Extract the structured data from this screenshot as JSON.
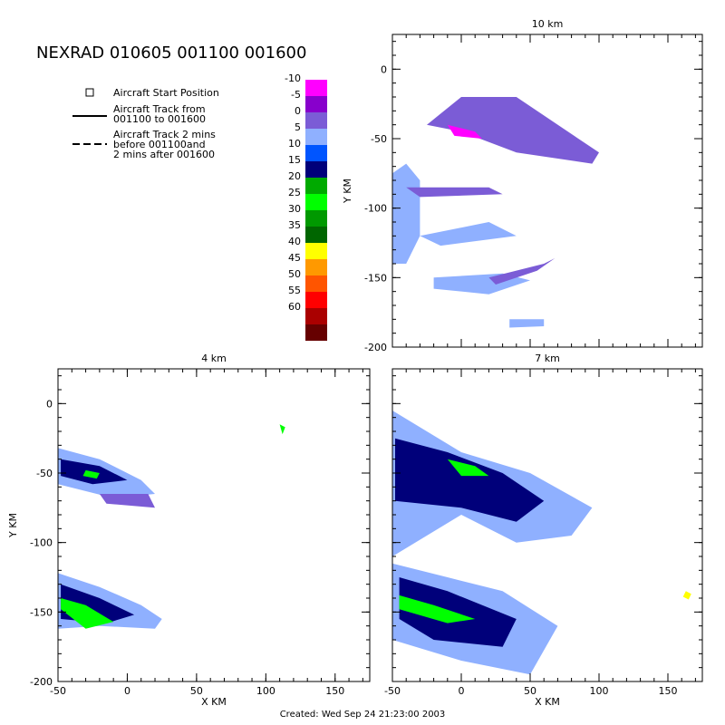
{
  "header": {
    "title": "NEXRAD 010605 001100 001600",
    "footer": "Created: Wed Sep 24 21:23:00 2003"
  },
  "legend": {
    "start_position": "Aircraft Start Position",
    "track_line1": "Aircraft Track from",
    "track_line2": "001100 to 001600",
    "dashed_line1": "Aircraft Track 2 mins",
    "dashed_line2": "before 001100and",
    "dashed_line3": "2 mins after 001600"
  },
  "colorbar": {
    "labels": [
      "-10",
      "-5",
      "0",
      "5",
      "10",
      "15",
      "20",
      "25",
      "30",
      "35",
      "40",
      "45",
      "50",
      "55",
      "60"
    ],
    "colors": [
      "#ff00ff",
      "#8800cc",
      "#7b5cd6",
      "#8fb0ff",
      "#0055ff",
      "#00007a",
      "#00aa00",
      "#00ff00",
      "#009900",
      "#006600",
      "#ffff00",
      "#ff9900",
      "#ff5500",
      "#ff0000",
      "#aa0000",
      "#660000"
    ]
  },
  "chart_data": [
    {
      "type": "heatmap",
      "title": "10 km",
      "xlabel": "",
      "ylabel": "Y KM",
      "xlim": [
        -50,
        175
      ],
      "ylim": [
        -200,
        25
      ],
      "yticks": [
        0,
        -50,
        -100,
        -150,
        -200
      ],
      "xticks": [],
      "regions": [
        {
          "label": "5",
          "color": "#8fb0ff",
          "points": [
            [
              -50,
              -75
            ],
            [
              -40,
              -68
            ],
            [
              -30,
              -80
            ],
            [
              -30,
              -120
            ],
            [
              -40,
              -140
            ],
            [
              -50,
              -140
            ]
          ]
        },
        {
          "label": "5",
          "color": "#8fb0ff",
          "points": [
            [
              -30,
              -120
            ],
            [
              20,
              -110
            ],
            [
              40,
              -120
            ],
            [
              -15,
              -127
            ]
          ]
        },
        {
          "label": "5",
          "color": "#8fb0ff",
          "points": [
            [
              -20,
              -150
            ],
            [
              30,
              -147
            ],
            [
              50,
              -152
            ],
            [
              20,
              -162
            ],
            [
              -20,
              -158
            ]
          ]
        },
        {
          "label": "5",
          "color": "#8fb0ff",
          "points": [
            [
              35,
              -180
            ],
            [
              60,
              -180
            ],
            [
              60,
              -185
            ],
            [
              35,
              -186
            ]
          ]
        },
        {
          "label": "0",
          "color": "#7b5cd6",
          "points": [
            [
              -25,
              -40
            ],
            [
              0,
              -20
            ],
            [
              40,
              -20
            ],
            [
              100,
              -60
            ],
            [
              95,
              -68
            ],
            [
              40,
              -60
            ],
            [
              0,
              -45
            ]
          ]
        },
        {
          "label": "0",
          "color": "#7b5cd6",
          "points": [
            [
              -40,
              -85
            ],
            [
              20,
              -85
            ],
            [
              30,
              -90
            ],
            [
              -30,
              -92
            ]
          ]
        },
        {
          "label": "0",
          "color": "#7b5cd6",
          "points": [
            [
              20,
              -150
            ],
            [
              60,
              -140
            ],
            [
              68,
              -136
            ],
            [
              55,
              -145
            ],
            [
              25,
              -155
            ]
          ]
        },
        {
          "label": "-10",
          "color": "#ff00ff",
          "points": [
            [
              -10,
              -40
            ],
            [
              10,
              -45
            ],
            [
              15,
              -50
            ],
            [
              -5,
              -48
            ]
          ]
        }
      ]
    },
    {
      "type": "heatmap",
      "title": "4 km",
      "xlabel": "X KM",
      "ylabel": "Y KM",
      "xlim": [
        -50,
        175
      ],
      "ylim": [
        -200,
        25
      ],
      "xticks": [
        -50,
        0,
        50,
        100,
        150
      ],
      "yticks": [
        0,
        -50,
        -100,
        -150,
        -200
      ],
      "regions": [
        {
          "label": "5",
          "color": "#8fb0ff",
          "points": [
            [
              -50,
              -32
            ],
            [
              -20,
              -40
            ],
            [
              10,
              -55
            ],
            [
              20,
              -65
            ],
            [
              -10,
              -68
            ],
            [
              -50,
              -58
            ]
          ]
        },
        {
          "label": "15",
          "color": "#00007a",
          "points": [
            [
              -48,
              -40
            ],
            [
              -20,
              -45
            ],
            [
              0,
              -55
            ],
            [
              -25,
              -58
            ],
            [
              -48,
              -52
            ]
          ]
        },
        {
          "label": "25",
          "color": "#00ff00",
          "points": [
            [
              -30,
              -48
            ],
            [
              -20,
              -50
            ],
            [
              -22,
              -54
            ],
            [
              -32,
              -52
            ]
          ]
        },
        {
          "label": "0",
          "color": "#7b5cd6",
          "points": [
            [
              -20,
              -65
            ],
            [
              15,
              -65
            ],
            [
              20,
              -75
            ],
            [
              -15,
              -72
            ]
          ]
        },
        {
          "label": "5",
          "color": "#8fb0ff",
          "points": [
            [
              -50,
              -122
            ],
            [
              -20,
              -132
            ],
            [
              10,
              -145
            ],
            [
              25,
              -155
            ],
            [
              20,
              -162
            ],
            [
              -20,
              -160
            ],
            [
              -50,
              -162
            ]
          ]
        },
        {
          "label": "15",
          "color": "#00007a",
          "points": [
            [
              -48,
              -130
            ],
            [
              -20,
              -140
            ],
            [
              5,
              -152
            ],
            [
              -15,
              -158
            ],
            [
              -48,
              -155
            ]
          ]
        },
        {
          "label": "25",
          "color": "#00ff00",
          "points": [
            [
              -48,
              -140
            ],
            [
              -30,
              -145
            ],
            [
              -10,
              -157
            ],
            [
              -30,
              -162
            ],
            [
              -48,
              -148
            ]
          ]
        },
        {
          "label": "25",
          "color": "#00ff00",
          "points": [
            [
              110,
              -15
            ],
            [
              114,
              -17
            ],
            [
              112,
              -22
            ]
          ]
        }
      ]
    },
    {
      "type": "heatmap",
      "title": "7 km",
      "xlabel": "X KM",
      "ylabel": "",
      "xlim": [
        -50,
        175
      ],
      "ylim": [
        -200,
        25
      ],
      "xticks": [
        -50,
        0,
        50,
        100,
        150
      ],
      "yticks": [],
      "regions": [
        {
          "label": "5",
          "color": "#8fb0ff",
          "points": [
            [
              -50,
              -5
            ],
            [
              0,
              -35
            ],
            [
              50,
              -50
            ],
            [
              95,
              -75
            ],
            [
              80,
              -95
            ],
            [
              40,
              -100
            ],
            [
              0,
              -80
            ],
            [
              -50,
              -110
            ]
          ]
        },
        {
          "label": "15",
          "color": "#00007a",
          "points": [
            [
              -48,
              -25
            ],
            [
              -10,
              -35
            ],
            [
              30,
              -50
            ],
            [
              60,
              -70
            ],
            [
              40,
              -85
            ],
            [
              0,
              -75
            ],
            [
              -48,
              -70
            ]
          ]
        },
        {
          "label": "25",
          "color": "#00ff00",
          "points": [
            [
              -10,
              -40
            ],
            [
              10,
              -45
            ],
            [
              20,
              -52
            ],
            [
              0,
              -52
            ]
          ]
        },
        {
          "label": "5",
          "color": "#8fb0ff",
          "points": [
            [
              -50,
              -115
            ],
            [
              -10,
              -125
            ],
            [
              30,
              -135
            ],
            [
              70,
              -160
            ],
            [
              50,
              -195
            ],
            [
              0,
              -185
            ],
            [
              -50,
              -170
            ]
          ]
        },
        {
          "label": "15",
          "color": "#00007a",
          "points": [
            [
              -45,
              -125
            ],
            [
              -10,
              -135
            ],
            [
              40,
              -155
            ],
            [
              30,
              -175
            ],
            [
              -20,
              -170
            ],
            [
              -45,
              -155
            ]
          ]
        },
        {
          "label": "25",
          "color": "#00ff00",
          "points": [
            [
              -45,
              -138
            ],
            [
              -20,
              -145
            ],
            [
              10,
              -155
            ],
            [
              -10,
              -158
            ],
            [
              -45,
              -148
            ]
          ]
        },
        {
          "label": "40",
          "color": "#ffff00",
          "points": [
            [
              163,
              -135
            ],
            [
              167,
              -137
            ],
            [
              165,
              -141
            ],
            [
              161,
              -139
            ]
          ]
        }
      ]
    }
  ]
}
